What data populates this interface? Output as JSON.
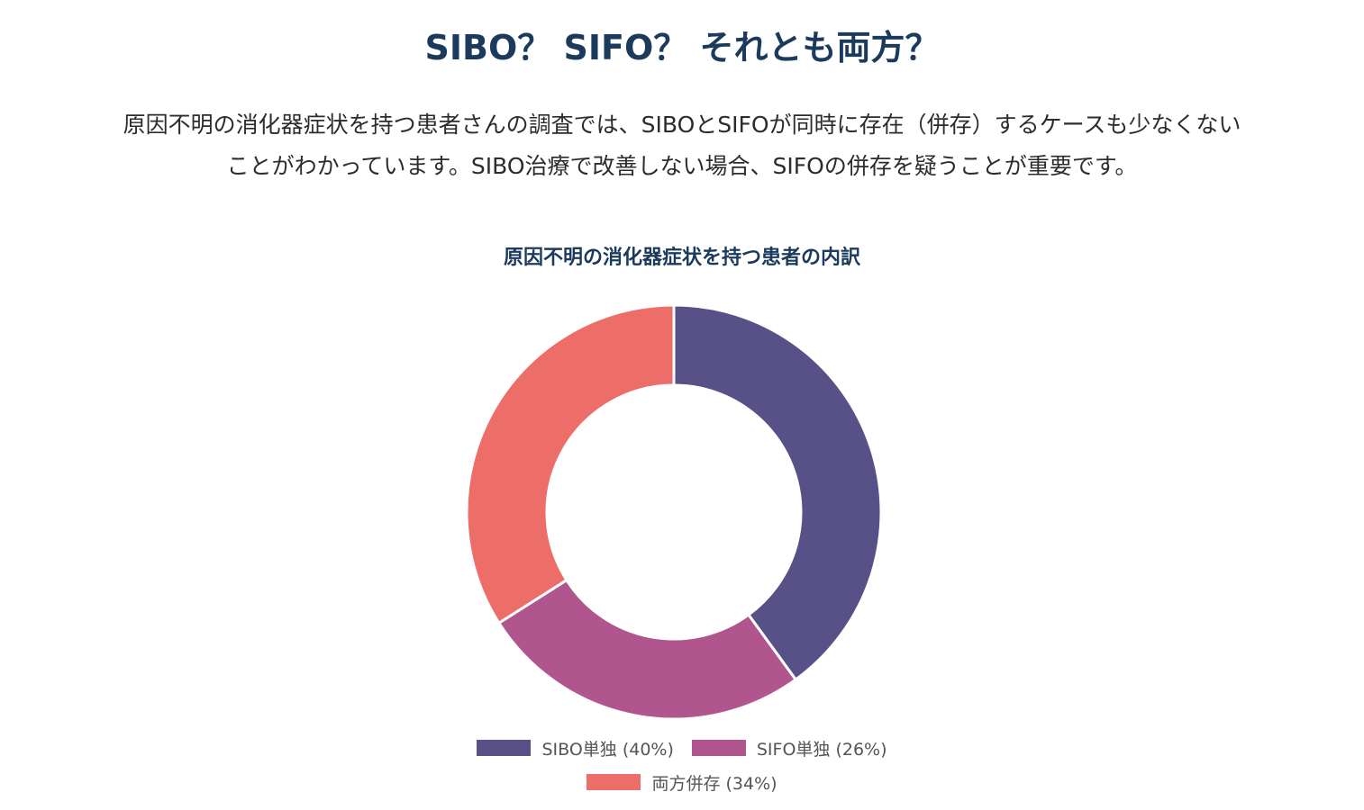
{
  "title": "SIBO？ SIFO？ それとも両方？",
  "description_lines": [
    "原因不明の消化器症状を持つ患者さんの調査では、SIBOとSIFOが同時に存在（併存）するケースも少なくない",
    "ことがわかっています。SIBO治療で改善しない場合、SIFOの併存を疑うことが重要です。"
  ],
  "chart_data": {
    "type": "pie",
    "subtype": "donut",
    "title": "原因不明の消化器症状を持つ患者の内訳",
    "categories": [
      "SIBO単独 (40%)",
      "SIFO単独 (26%)",
      "両方併存 (34%)"
    ],
    "values": [
      40,
      26,
      34
    ],
    "colors": [
      "#585188",
      "#b1558e",
      "#ed6e69"
    ],
    "legend_placement": "bottom"
  }
}
